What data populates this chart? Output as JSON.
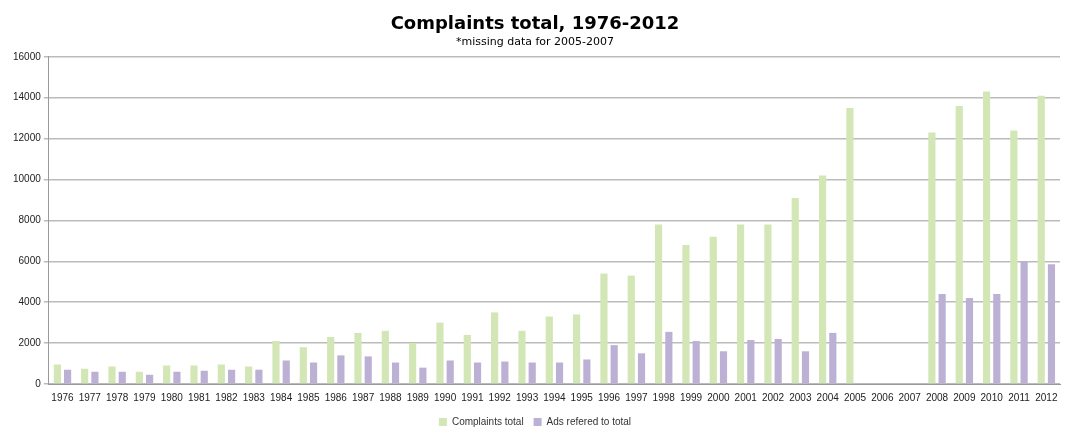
{
  "chart_data": {
    "type": "bar",
    "title": "Complaints total, 1976-2012",
    "subtitle": "*missing data for 2005-2007",
    "categories": [
      "1976",
      "1977",
      "1978",
      "1979",
      "1980",
      "1981",
      "1982",
      "1983",
      "1984",
      "1985",
      "1986",
      "1987",
      "1988",
      "1989",
      "1990",
      "1991",
      "1992",
      "1993",
      "1994",
      "1995",
      "1996",
      "1997",
      "1998",
      "1999",
      "2000",
      "2001",
      "2002",
      "2003",
      "2004",
      "2005",
      "2006",
      "2007",
      "2008",
      "2009",
      "2010",
      "2011",
      "2012"
    ],
    "series": [
      {
        "name": "Complaints total",
        "color": "#d3e6b5",
        "values": [
          950,
          750,
          850,
          600,
          900,
          900,
          950,
          850,
          2100,
          1800,
          2300,
          2500,
          2600,
          2000,
          3000,
          2400,
          3500,
          2600,
          3300,
          3400,
          5400,
          5300,
          7800,
          6800,
          7200,
          7800,
          7800,
          9100,
          10200,
          13500,
          null,
          null,
          12300,
          13600,
          14300,
          12400,
          14100
        ]
      },
      {
        "name": "Ads refered to total",
        "color": "#bcb0d4",
        "values": [
          700,
          600,
          600,
          450,
          600,
          650,
          700,
          700,
          1150,
          1050,
          1400,
          1350,
          1050,
          800,
          1150,
          1050,
          1100,
          1050,
          1050,
          1200,
          1900,
          1500,
          2550,
          2100,
          1600,
          2150,
          2200,
          1600,
          2500,
          null,
          null,
          null,
          4400,
          4200,
          4400,
          6000,
          5850
        ]
      }
    ],
    "ylim": [
      0,
      16000
    ],
    "yticks": [
      0,
      2000,
      4000,
      6000,
      8000,
      10000,
      12000,
      14000,
      16000
    ],
    "grid": "y",
    "legend": "bottom"
  }
}
